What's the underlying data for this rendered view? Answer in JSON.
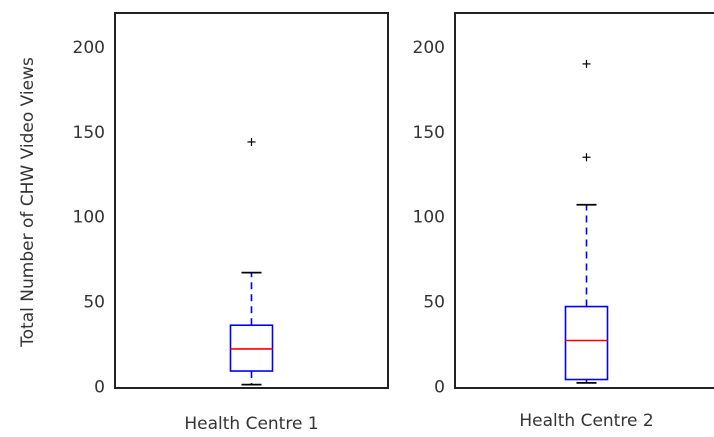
{
  "chart_data": [
    {
      "type": "boxplot",
      "categories": [
        "Health Centre 1"
      ],
      "ylabel": "Total Number of CHW Video Views",
      "ylim": [
        -1,
        220
      ],
      "yticks": [
        0,
        50,
        100,
        150,
        200
      ],
      "ytick_labels": [
        "0",
        "50",
        "100",
        "150",
        "200"
      ],
      "grid": false,
      "box": {
        "min": 1,
        "q1": 9,
        "median": 22,
        "q3": 36,
        "max": 67,
        "outliers": [
          144
        ]
      },
      "colors": {
        "box": "#0000ff",
        "whisker": "#0000ff",
        "median": "#ff0000",
        "outlier": "#000000",
        "frame": "#000000"
      }
    },
    {
      "type": "boxplot",
      "categories": [
        "Health Centre 2"
      ],
      "ylabel": "",
      "ylim": [
        -1,
        220
      ],
      "yticks": [
        0,
        50,
        100,
        150,
        200
      ],
      "ytick_labels": [
        "0",
        "50",
        "100",
        "150",
        "200"
      ],
      "grid": false,
      "box": {
        "min": 2,
        "q1": 4,
        "median": 27,
        "q3": 47,
        "max": 107,
        "outliers": [
          135,
          190
        ]
      },
      "colors": {
        "box": "#0000ff",
        "whisker": "#0000ff",
        "median": "#ff0000",
        "outlier": "#000000",
        "frame": "#000000"
      }
    }
  ]
}
